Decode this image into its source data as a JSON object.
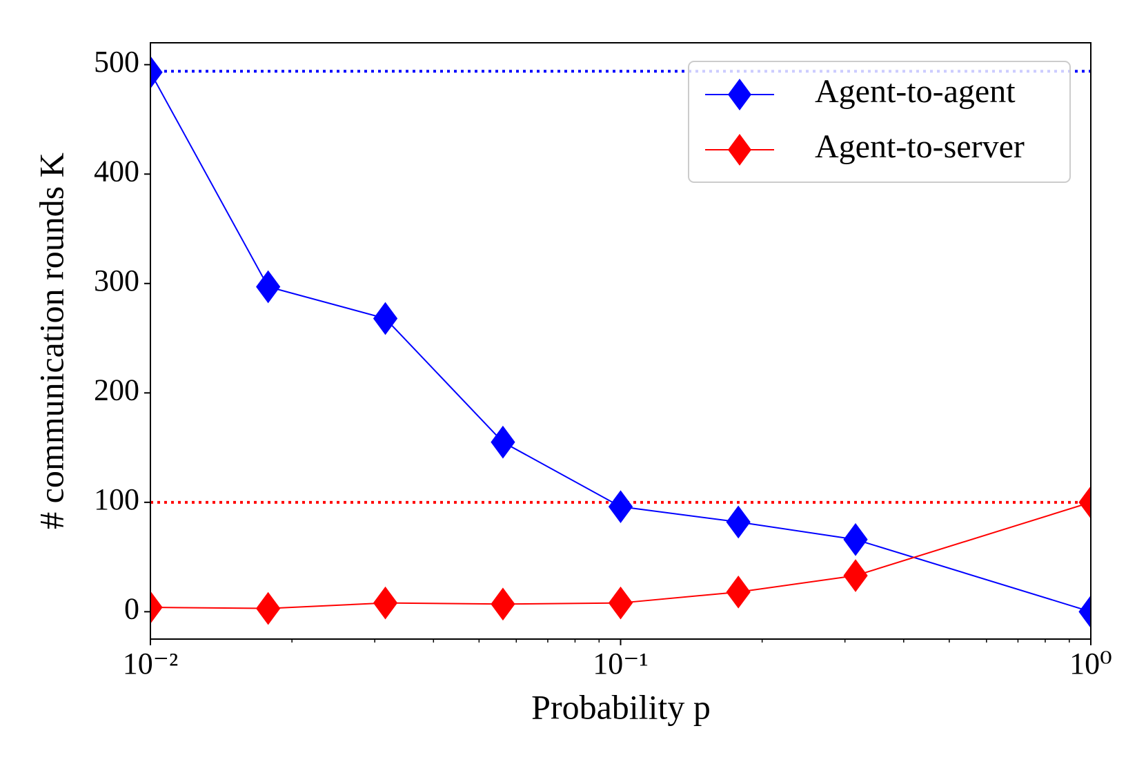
{
  "chart_data": {
    "type": "line",
    "xlabel": "Probability p",
    "ylabel": "# communication rounds K",
    "x": [
      0.01,
      0.0178,
      0.0316,
      0.0562,
      0.1,
      0.178,
      0.316,
      1
    ],
    "series": [
      {
        "name": "Agent-to-agent",
        "color": "#0000ff",
        "values": [
          493,
          297,
          268,
          155,
          96,
          82,
          66,
          0
        ]
      },
      {
        "name": "Agent-to-server",
        "color": "#ff0000",
        "values": [
          4,
          3,
          8,
          7,
          8,
          18,
          33,
          100
        ]
      }
    ],
    "hlines": [
      {
        "y": 494,
        "color": "#0000ff"
      },
      {
        "y": 100,
        "color": "#ff0000"
      }
    ],
    "xscale": "log",
    "xlim": [
      0.01,
      1
    ],
    "ylim": [
      -25,
      520
    ],
    "xticks": [
      {
        "value": 0.01,
        "label": "10⁻²"
      },
      {
        "value": 0.1,
        "label": "10⁻¹"
      },
      {
        "value": 1,
        "label": "10⁰"
      }
    ],
    "xminorticks": [
      0.02,
      0.03,
      0.04,
      0.05,
      0.06,
      0.07,
      0.08,
      0.09,
      0.2,
      0.3,
      0.4,
      0.5,
      0.6,
      0.7,
      0.8,
      0.9
    ],
    "yticks": [
      0,
      100,
      200,
      300,
      400,
      500
    ],
    "legend": "upper right"
  }
}
